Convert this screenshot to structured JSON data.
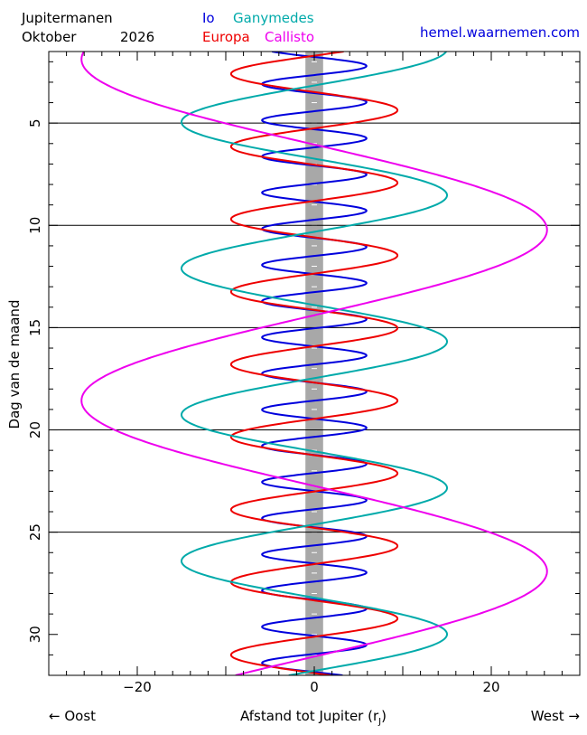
{
  "header": {
    "title": "Jupitermanen",
    "month": "Oktober",
    "year": "2026",
    "website": "hemel.waarnemen.com"
  },
  "chart_data": {
    "type": "line",
    "xlabel": "Afstand tot Jupiter (r",
    "xlabel_sub": "J",
    "xlabel_close": ")",
    "ylabel": "Dag van de maand",
    "left_direction": "← Oost",
    "right_direction": "West →",
    "xlim": [
      -30,
      30
    ],
    "ylim": [
      1.5,
      32
    ],
    "y_inverted": true,
    "x_ticks": [
      -20,
      0,
      20
    ],
    "x_tick_labels": [
      "−20",
      "0",
      "20"
    ],
    "y_ticks": [
      5,
      10,
      15,
      20,
      25,
      30
    ],
    "day_lines": [
      5,
      10,
      15,
      20,
      25
    ],
    "jupiter_radius": 1,
    "series": [
      {
        "name": "Io",
        "color": "#0000dd",
        "amplitude": 5.9,
        "period": 1.769,
        "zero_day": 2.65,
        "direction": -1
      },
      {
        "name": "Europa",
        "color": "#ee0000",
        "amplitude": 9.4,
        "period": 3.551,
        "zero_day": 3.48,
        "direction": 1
      },
      {
        "name": "Ganymedes",
        "color": "#00aaaa",
        "amplitude": 15.0,
        "period": 7.155,
        "zero_day": 3.16,
        "direction": -1
      },
      {
        "name": "Callisto",
        "color": "#ee00ee",
        "amplitude": 26.3,
        "period": 16.689,
        "zero_day": 6.05,
        "direction": 1
      }
    ]
  }
}
